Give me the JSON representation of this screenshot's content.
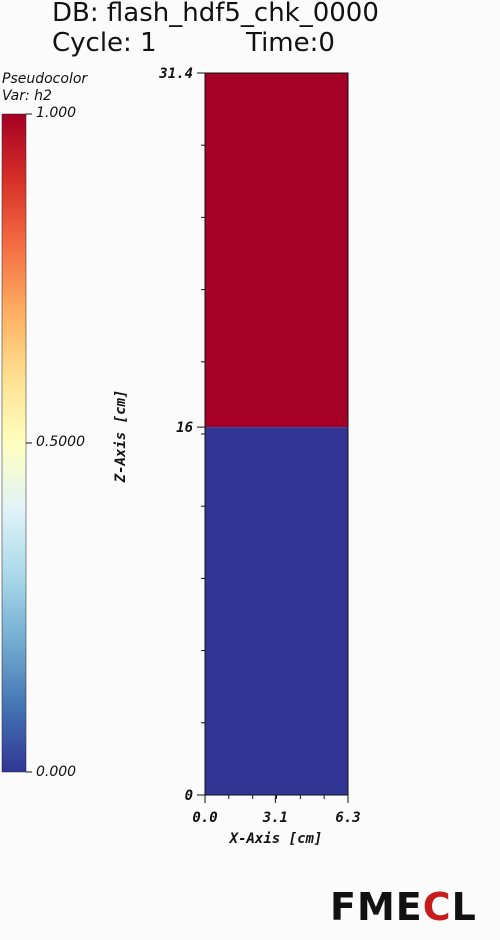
{
  "header": {
    "db_line": "DB: flash_hdf5_chk_0000",
    "cycle_line": "Cycle: 1",
    "time_line": "Time:0"
  },
  "legend": {
    "plot_type": "Pseudocolor",
    "var_label": "Var: h2",
    "max_label": "1.000",
    "mid_label": "0.5000",
    "min_label": "0.000",
    "colormap": [
      "#a50026",
      "#d73027",
      "#f46d43",
      "#fdae61",
      "#fee090",
      "#ffffbf",
      "#e0f3f8",
      "#abd9e9",
      "#74add1",
      "#4575b4",
      "#313695"
    ]
  },
  "brand": {
    "text_a": "FME",
    "text_c": "C",
    "text_b": "L"
  },
  "colors": {
    "top_region": "#a50026",
    "bottom_region": "#313695"
  },
  "chart_data": {
    "type": "heatmap",
    "variable": "h2",
    "xlabel": "X-Axis [cm]",
    "ylabel": "Z-Axis [cm]",
    "xlim": [
      0.0,
      6.3
    ],
    "ylim": [
      0,
      31.4
    ],
    "x_tick_labels": [
      "0.0",
      "3.1",
      "6.3"
    ],
    "y_tick_labels": [
      "0",
      "16",
      "31.4"
    ],
    "x_ticks": [
      0.0,
      3.1,
      6.3
    ],
    "y_ticks": [
      0,
      16,
      31.4
    ],
    "regions": [
      {
        "z_range": [
          16,
          31.4
        ],
        "value": 1.0
      },
      {
        "z_range": [
          0,
          16
        ],
        "value": 0.0
      }
    ],
    "interface_z": 16
  }
}
